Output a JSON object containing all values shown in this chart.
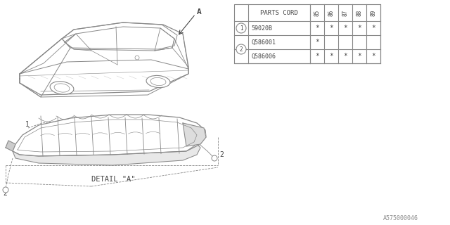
{
  "bg_color": "#ffffff",
  "line_color": "#888888",
  "dark_line": "#444444",
  "table": {
    "header": "PARTS CORD",
    "columns": [
      "85",
      "86",
      "87",
      "88",
      "89"
    ],
    "rows": [
      {
        "item": "1",
        "part": "59020B",
        "marks": [
          true,
          true,
          true,
          true,
          true
        ]
      },
      {
        "item": "2",
        "part": "Q586001",
        "marks": [
          true,
          false,
          false,
          false,
          false
        ]
      },
      {
        "item": "2",
        "part": "Q586006",
        "marks": [
          true,
          true,
          true,
          true,
          true
        ]
      }
    ]
  },
  "diagram_label_detail": "DETAIL \"A\"",
  "diagram_code": "A575000046"
}
